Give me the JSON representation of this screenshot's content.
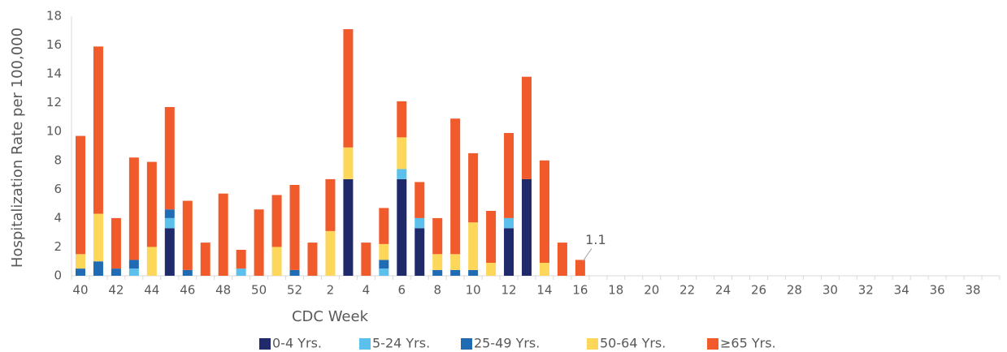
{
  "chart_data": {
    "type": "stacked-bar",
    "x_label": "CDC Week",
    "y_label": "Hospitalization Rate per 100,000",
    "categories": [
      "40",
      null,
      "42",
      null,
      "44",
      null,
      "46",
      null,
      "48",
      null,
      "50",
      null,
      "52",
      null,
      "2",
      null,
      "4",
      null,
      "6",
      null,
      "8",
      null,
      "10",
      null,
      "12",
      null,
      "14",
      null,
      "16",
      null,
      "18",
      null,
      "20",
      null,
      "22",
      null,
      "24",
      null,
      "26",
      null,
      "28",
      null,
      "30",
      null,
      "32",
      null,
      "34",
      null,
      "36",
      null,
      "38",
      null
    ],
    "series": [
      {
        "name": "0-4 Yrs.",
        "color": "#1f2a6b",
        "values": [
          0,
          0,
          0,
          0,
          0,
          3.3,
          0,
          0,
          0,
          0,
          0,
          0,
          0,
          0,
          0,
          6.7,
          0,
          0,
          6.7,
          3.3,
          0,
          0,
          0,
          0,
          3.3,
          6.7,
          0,
          0,
          0,
          null,
          null,
          null,
          null,
          null,
          null,
          null,
          null,
          null,
          null,
          null,
          null,
          null,
          null,
          null,
          null,
          null,
          null,
          null,
          null,
          null,
          null,
          null
        ]
      },
      {
        "name": "5-24 Yrs.",
        "color": "#5bc0eb",
        "values": [
          0,
          0,
          0,
          0.5,
          0,
          0.7,
          0,
          0,
          0,
          0.5,
          0,
          0,
          0,
          0,
          0,
          0,
          0,
          0.5,
          0.7,
          0.7,
          0,
          0,
          0,
          0,
          0.7,
          0,
          0,
          0,
          0,
          null,
          null,
          null,
          null,
          null,
          null,
          null,
          null,
          null,
          null,
          null,
          null,
          null,
          null,
          null,
          null,
          null,
          null,
          null,
          null,
          null,
          null,
          null
        ]
      },
      {
        "name": "25-49 Yrs.",
        "color": "#1f6cb4",
        "values": [
          0.5,
          1.0,
          0.5,
          0.6,
          0,
          0.6,
          0.4,
          0,
          0,
          0,
          0,
          0,
          0.4,
          0,
          0,
          0,
          0,
          0.6,
          0,
          0,
          0.4,
          0.4,
          0.4,
          0,
          0,
          0,
          0,
          0,
          0,
          null,
          null,
          null,
          null,
          null,
          null,
          null,
          null,
          null,
          null,
          null,
          null,
          null,
          null,
          null,
          null,
          null,
          null,
          null,
          null,
          null,
          null,
          null
        ]
      },
      {
        "name": "50-64 Yrs.",
        "color": "#fdd75a",
        "values": [
          1.0,
          3.3,
          0,
          0,
          2.0,
          0,
          0,
          0,
          0,
          0,
          0,
          2.0,
          0,
          0,
          3.1,
          2.2,
          0,
          1.1,
          2.2,
          0,
          1.1,
          1.1,
          3.3,
          0.9,
          0,
          0,
          0.9,
          0,
          0,
          null,
          null,
          null,
          null,
          null,
          null,
          null,
          null,
          null,
          null,
          null,
          null,
          null,
          null,
          null,
          null,
          null,
          null,
          null,
          null,
          null,
          null,
          null
        ]
      },
      {
        "name": "≥65 Yrs.",
        "color": "#f15a2b",
        "values": [
          8.2,
          11.6,
          3.5,
          7.1,
          5.9,
          7.1,
          4.8,
          2.3,
          5.7,
          1.3,
          4.6,
          3.6,
          5.9,
          2.3,
          3.6,
          8.2,
          2.3,
          2.5,
          2.5,
          2.5,
          2.5,
          9.4,
          4.8,
          3.6,
          5.9,
          7.1,
          7.1,
          2.3,
          1.1,
          null,
          null,
          null,
          null,
          null,
          null,
          null,
          null,
          null,
          null,
          null,
          null,
          null,
          null,
          null,
          null,
          null,
          null,
          null,
          null,
          null,
          null,
          null
        ],
        "value_labels": [
          null,
          null,
          null,
          null,
          null,
          null,
          null,
          null,
          null,
          null,
          null,
          null,
          null,
          null,
          null,
          null,
          null,
          null,
          null,
          null,
          null,
          null,
          null,
          null,
          null,
          null,
          null,
          null,
          "1.1",
          null,
          null,
          null,
          null,
          null,
          null,
          null,
          null,
          null,
          null,
          null,
          null,
          null,
          null,
          null,
          null,
          null,
          null,
          null,
          null,
          null,
          null,
          null
        ]
      }
    ],
    "ylim": [
      0,
      18
    ],
    "yticks": [
      0,
      2,
      4,
      6,
      8,
      10,
      12,
      14,
      16,
      18
    ],
    "legend": "bottom"
  }
}
